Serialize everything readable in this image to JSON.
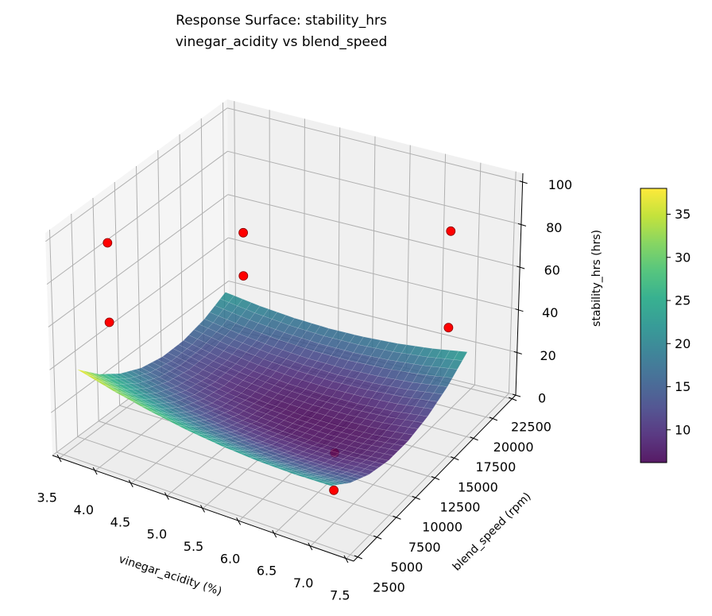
{
  "chart_data": {
    "type": "surface3d",
    "title": [
      "Response Surface: stability_hrs",
      "vinegar_acidity vs blend_speed"
    ],
    "xlabel": "vinegar_acidity (%)",
    "ylabel": "blend_speed (rpm)",
    "zlabel": "stability_hrs (hrs)",
    "xlim": [
      3.4,
      7.6
    ],
    "ylim": [
      2000,
      23000
    ],
    "zlim": [
      0,
      104
    ],
    "xticks": [
      "3.5",
      "4.0",
      "4.5",
      "5.0",
      "5.5",
      "6.0",
      "6.5",
      "7.0",
      "7.5"
    ],
    "yticks": [
      "2500",
      "5000",
      "7500",
      "10000",
      "12500",
      "15000",
      "17500",
      "20000",
      "22500"
    ],
    "zticks": [
      "0",
      "20",
      "40",
      "60",
      "80",
      "100"
    ],
    "grid": true,
    "surface": {
      "colormap": "viridis",
      "x": [
        3.6,
        4.1,
        4.6,
        5.1,
        5.6,
        6.1,
        6.6,
        7.1
      ],
      "y": [
        3500,
        6000,
        8500,
        11000,
        13500,
        16000,
        18500,
        21000
      ],
      "z": [
        [
          38.0,
          33.4,
          29.6,
          26.6,
          24.5,
          23.2,
          22.7,
          23.0
        ],
        [
          28.4,
          24.2,
          20.7,
          18.1,
          16.3,
          15.3,
          15.1,
          15.7
        ],
        [
          21.3,
          17.4,
          14.2,
          11.9,
          10.5,
          9.8,
          9.9,
          10.9
        ],
        [
          16.6,
          13.0,
          10.2,
          8.2,
          7.1,
          6.7,
          7.2,
          8.5
        ],
        [
          14.4,
          11.1,
          8.6,
          7.0,
          6.2,
          6.2,
          6.9,
          8.6
        ],
        [
          14.6,
          11.6,
          9.5,
          8.2,
          7.7,
          8.0,
          9.1,
          11.1
        ],
        [
          17.2,
          14.6,
          12.8,
          11.8,
          11.6,
          12.3,
          13.7,
          16.0
        ],
        [
          22.3,
          20.0,
          18.5,
          17.8,
          18.0,
          19.0,
          20.8,
          23.4
        ]
      ]
    },
    "points": [
      {
        "x": 3.74,
        "y": 22000,
        "z": 28,
        "color": "#ff0000",
        "behind_surface": false
      },
      {
        "x": 3.74,
        "y": 22000,
        "z": 48,
        "color": "#ff0000",
        "behind_surface": false
      },
      {
        "x": 3.5,
        "y": 8200,
        "z": 45,
        "color": "#ff0000",
        "behind_surface": false
      },
      {
        "x": 3.5,
        "y": 8200,
        "z": 82,
        "color": "#ff0000",
        "behind_surface": false
      },
      {
        "x": 6.71,
        "y": 22000,
        "z": 28,
        "color": "#ff0000",
        "behind_surface": true
      },
      {
        "x": 6.71,
        "y": 22000,
        "z": 73,
        "color": "#ff0000",
        "behind_surface": false
      },
      {
        "x": 6.69,
        "y": 7770,
        "z": 2,
        "color": "#ff0000",
        "behind_surface": true
      },
      {
        "x": 6.69,
        "y": 7770,
        "z": 19,
        "color": "#ff0000",
        "behind_surface": true
      }
    ],
    "colorbar": {
      "ticks": [
        "10",
        "15",
        "20",
        "25",
        "30",
        "35"
      ]
    }
  }
}
